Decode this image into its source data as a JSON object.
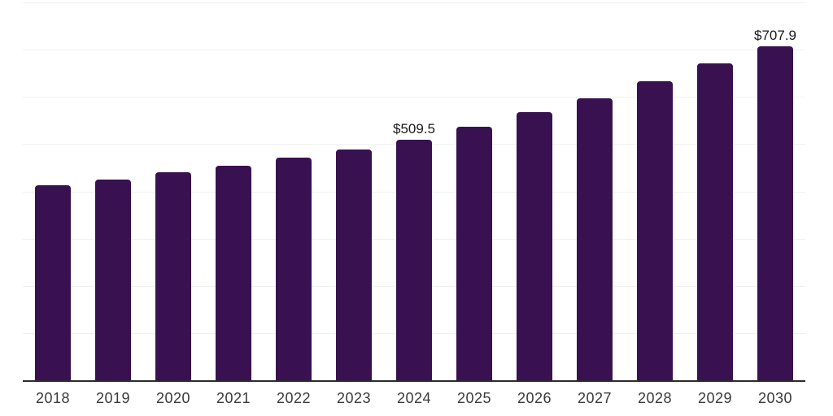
{
  "chart_data": {
    "type": "bar",
    "title": "",
    "xlabel": "",
    "ylabel": "",
    "categories": [
      "2018",
      "2019",
      "2020",
      "2021",
      "2022",
      "2023",
      "2024",
      "2025",
      "2026",
      "2027",
      "2028",
      "2029",
      "2030"
    ],
    "values": [
      412.4,
      425.3,
      439.7,
      453.4,
      471.1,
      489.4,
      509.5,
      536.7,
      567.0,
      597.8,
      633.3,
      670.9,
      707.9
    ],
    "value_labels": [
      "",
      "",
      "",
      "",
      "",
      "",
      "$509.5",
      "",
      "",
      "",
      "",
      "",
      "$707.9"
    ],
    "ylim": [
      0,
      800
    ],
    "grid_step": 100,
    "grid": "horizontal-only",
    "legend": "none",
    "y_axis_tick_labels": "none",
    "colors": {
      "bar": "#391150",
      "grid": "#f0f0f2",
      "axis": "#2b2b2b",
      "tick_label": "#3a3a3a",
      "value_label": "#1a1a1a",
      "background": "#ffffff"
    }
  }
}
